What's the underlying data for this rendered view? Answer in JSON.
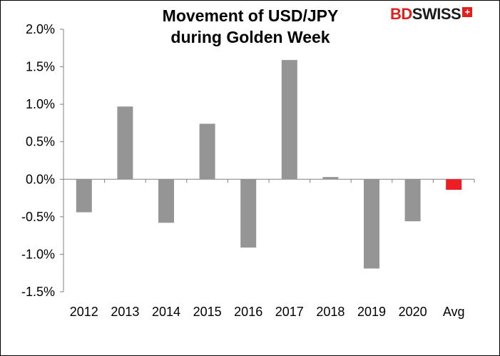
{
  "chart_data": {
    "type": "bar",
    "title_line1": "Movement of USD/JPY",
    "title_line2": "during Golden Week",
    "categories": [
      "2012",
      "2013",
      "2014",
      "2015",
      "2016",
      "2017",
      "2018",
      "2019",
      "2020",
      "Avg"
    ],
    "values": [
      -0.44,
      0.97,
      -0.58,
      0.74,
      -0.91,
      1.59,
      0.03,
      -1.19,
      -0.56,
      -0.14
    ],
    "bar_colors": [
      "#959595",
      "#959595",
      "#959595",
      "#959595",
      "#959595",
      "#959595",
      "#959595",
      "#959595",
      "#959595",
      "#ee1c23"
    ],
    "ylim": [
      -1.5,
      2.0
    ],
    "yticks": [
      2.0,
      1.5,
      1.0,
      0.5,
      0.0,
      -0.5,
      -1.0,
      -1.5
    ],
    "ytick_labels": [
      "2.0%",
      "1.5%",
      "1.0%",
      "0.5%",
      "0.0%",
      "-0.5%",
      "-1.0%",
      "-1.5%"
    ],
    "grid": false
  },
  "logo": {
    "bd": "BD",
    "swiss": "SWISS",
    "plus": "+"
  }
}
